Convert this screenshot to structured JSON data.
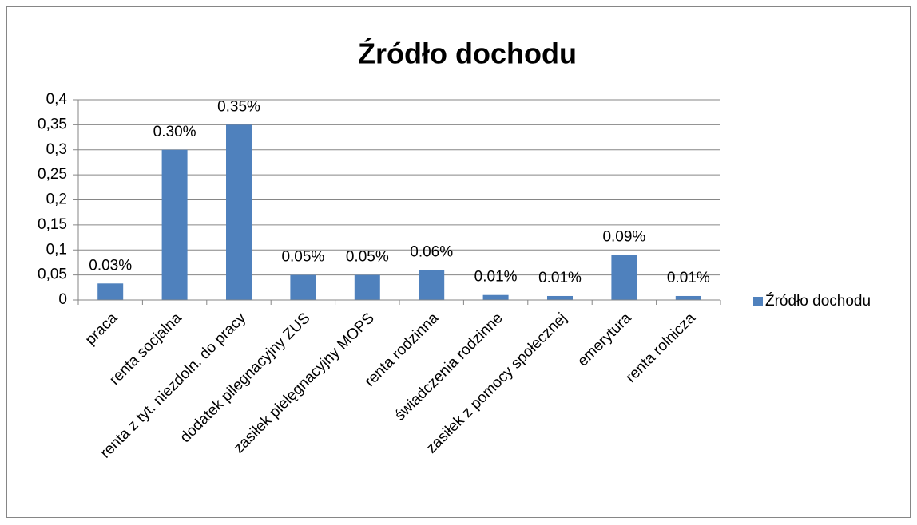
{
  "chart_data": {
    "type": "bar",
    "title": "Źródło dochodu",
    "categories": [
      "praca",
      "renta socjalna",
      "renta z tyt. niezdoln. do pracy",
      "dodatek pilegnacyjny ZUS",
      "zasiłek pielęgnacyjny MOPS",
      "renta rodzinna",
      "świadczenia rodzinne",
      "zasiłek z pomocy społecznej",
      "emerytura",
      "renta rolnicza"
    ],
    "series": [
      {
        "name": "Źródło dochodu",
        "color": "#4f81bd",
        "values": [
          0.033,
          0.3,
          0.35,
          0.05,
          0.05,
          0.06,
          0.01,
          0.008,
          0.09,
          0.008
        ],
        "value_labels": [
          "0.03%",
          "0.30%",
          "0.35%",
          "0.05%",
          "0.05%",
          "0.06%",
          "0.01%",
          "0.01%",
          "0.09%",
          "0.01%"
        ]
      }
    ],
    "ylim": [
      0,
      0.4
    ],
    "yticks": [
      0,
      {
        "value": 0.05,
        "label": "0,05"
      },
      {
        "value": 0.1,
        "label": "0,1"
      },
      {
        "value": 0.15,
        "label": "0,15"
      },
      {
        "value": 0.2,
        "label": "0,2"
      },
      {
        "value": 0.25,
        "label": "0,25"
      },
      {
        "value": 0.3,
        "label": "0,3"
      },
      {
        "value": 0.35,
        "label": "0,35"
      },
      {
        "value": 0.4,
        "label": "0,4"
      }
    ],
    "grid": true,
    "legend": "right"
  }
}
